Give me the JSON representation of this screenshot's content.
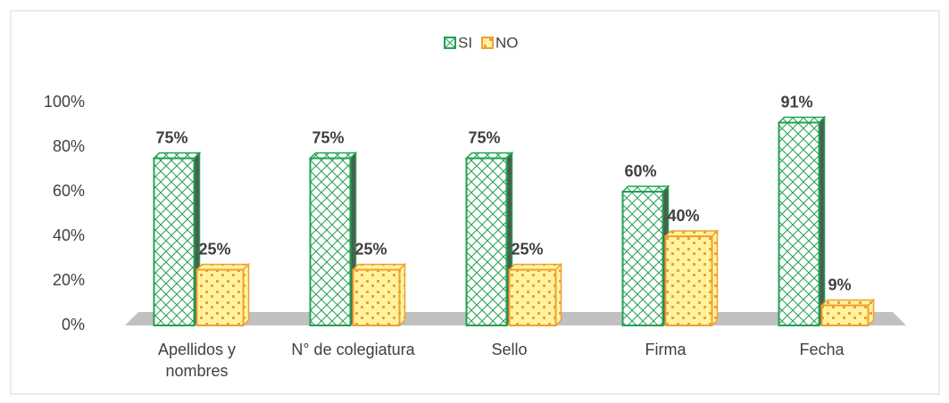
{
  "chart_data": {
    "type": "bar",
    "categories": [
      "Apellidos y nombres",
      "N° de colegiatura",
      "Sello",
      "Firma",
      "Fecha"
    ],
    "series": [
      {
        "name": "SI",
        "color": "#21a150",
        "values": [
          75,
          75,
          75,
          60,
          91
        ],
        "value_labels": [
          "75%",
          "75%",
          "75%",
          "60%",
          "91%"
        ]
      },
      {
        "name": "NO",
        "color": "#f0a030",
        "values": [
          25,
          25,
          25,
          40,
          9
        ],
        "value_labels": [
          "25%",
          "25%",
          "25%",
          "40%",
          "9%"
        ]
      }
    ],
    "ylim": [
      0,
      100
    ],
    "yticks": [
      {
        "value": 0,
        "label": "0%"
      },
      {
        "value": 20,
        "label": "20%"
      },
      {
        "value": 40,
        "label": "40%"
      },
      {
        "value": 60,
        "label": "60%"
      },
      {
        "value": 80,
        "label": "80%"
      },
      {
        "value": 100,
        "label": "100%"
      }
    ],
    "legend": "top"
  }
}
